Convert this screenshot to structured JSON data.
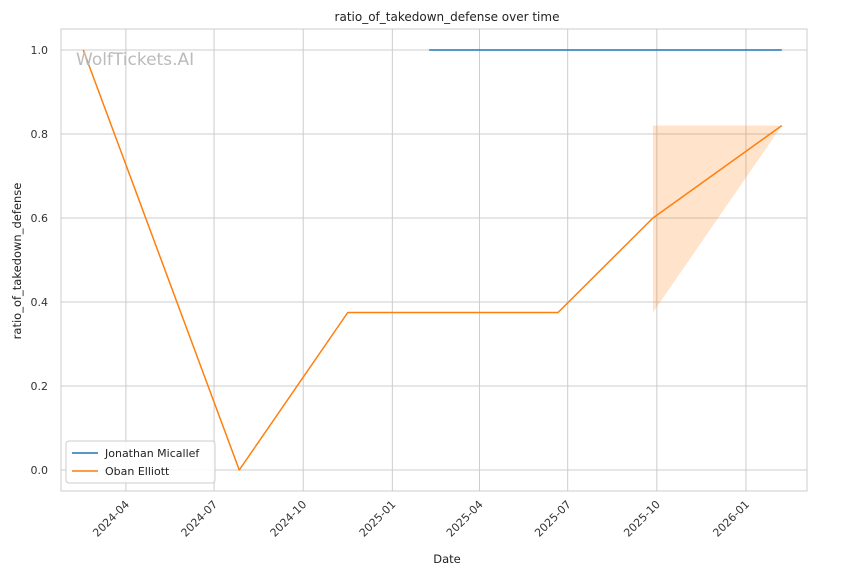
{
  "chart_data": {
    "type": "line",
    "title": "ratio_of_takedown_defense over time",
    "xlabel": "Date",
    "ylabel": "ratio_of_takedown_defense",
    "watermark": "WolfTickets.AI",
    "x_axis_type": "date",
    "xlim": [
      "2024-01-25",
      "2026-03-05"
    ],
    "ylim": [
      -0.05,
      1.05
    ],
    "x_ticks": [
      "2024-04-01",
      "2024-07-01",
      "2024-10-01",
      "2025-01-01",
      "2025-04-01",
      "2025-07-01",
      "2025-10-01",
      "2026-01-01"
    ],
    "x_tick_labels": [
      "2024-04",
      "2024-07",
      "2024-10",
      "2025-01",
      "2025-04",
      "2025-07",
      "2025-10",
      "2026-01"
    ],
    "y_ticks": [
      0.0,
      0.2,
      0.4,
      0.6,
      0.8,
      1.0
    ],
    "y_tick_labels": [
      "0.0",
      "0.2",
      "0.4",
      "0.6",
      "0.8",
      "1.0"
    ],
    "grid": true,
    "legend_position": "bottom-left",
    "series": [
      {
        "name": "Jonathan Micallef",
        "color": "#1f77b4",
        "x": [
          "2025-02-08",
          "2026-02-07"
        ],
        "y": [
          1.0,
          1.0
        ]
      },
      {
        "name": "Oban Elliott",
        "color": "#ff7f0e",
        "x": [
          "2024-02-17",
          "2024-07-27",
          "2024-11-16",
          "2025-06-21",
          "2025-09-27",
          "2026-02-07"
        ],
        "y": [
          1.0,
          0.0,
          0.375,
          0.375,
          0.6,
          0.82
        ],
        "band": {
          "x": [
            "2025-09-27",
            "2026-02-07"
          ],
          "lower": [
            0.375,
            0.82
          ],
          "upper": [
            0.82,
            0.82
          ]
        }
      }
    ]
  }
}
